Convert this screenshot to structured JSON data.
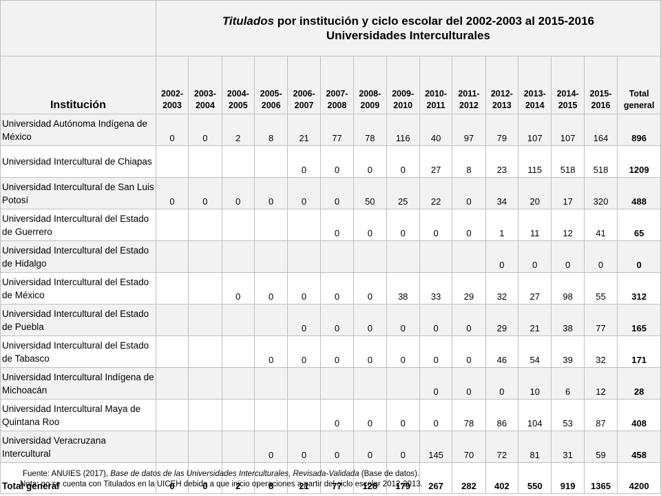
{
  "title": {
    "italic_part": "Titulados",
    "rest_line1": " por institución y ciclo escolar del 2002-2003 al  2015-2016",
    "line2": "Universidades Interculturales"
  },
  "header": {
    "institution_label": "Institución",
    "years": [
      "2002-2003",
      "2003-2004",
      "2004-2005",
      "2005-2006",
      "2006-2007",
      "2007-2008",
      "2008-2009",
      "2009-2010",
      "2010-2011",
      "2011-2012",
      "2012-2013",
      "2013-2014",
      "2014-2015",
      "2015-2016"
    ],
    "total_label": "Total general"
  },
  "rows": [
    {
      "name": "Universidad Autónoma Indígena de México",
      "values": [
        "0",
        "0",
        "2",
        "8",
        "21",
        "77",
        "78",
        "116",
        "40",
        "97",
        "79",
        "107",
        "107",
        "164"
      ],
      "total": "896"
    },
    {
      "name": "Universidad Intercultural de Chiapas",
      "values": [
        "",
        "",
        "",
        "",
        "0",
        "0",
        "0",
        "0",
        "27",
        "8",
        "23",
        "115",
        "518",
        "518"
      ],
      "total": "1209"
    },
    {
      "name": "Universidad Intercultural de San Luis Potosí",
      "values": [
        "0",
        "0",
        "0",
        "0",
        "0",
        "0",
        "50",
        "25",
        "22",
        "0",
        "34",
        "20",
        "17",
        "320"
      ],
      "total": "488"
    },
    {
      "name": "Universidad Intercultural del Estado de Guerrero",
      "values": [
        "",
        "",
        "",
        "",
        "",
        "0",
        "0",
        "0",
        "0",
        "0",
        "1",
        "11",
        "12",
        "41"
      ],
      "total": "65"
    },
    {
      "name": "Universidad Intercultural del Estado de Hidalgo",
      "values": [
        "",
        "",
        "",
        "",
        "",
        "",
        "",
        "",
        "",
        "",
        "0",
        "0",
        "0",
        "0"
      ],
      "total": "0"
    },
    {
      "name": "Universidad Intercultural del Estado de México",
      "values": [
        "",
        "",
        "0",
        "0",
        "0",
        "0",
        "0",
        "38",
        "33",
        "29",
        "32",
        "27",
        "98",
        "55"
      ],
      "total": "312"
    },
    {
      "name": "Universidad Intercultural del Estado de Puebla",
      "values": [
        "",
        "",
        "",
        "",
        "0",
        "0",
        "0",
        "0",
        "0",
        "0",
        "29",
        "21",
        "38",
        "77"
      ],
      "total": "165"
    },
    {
      "name": "Universidad Intercultural del Estado de Tabasco",
      "values": [
        "",
        "",
        "",
        "0",
        "0",
        "0",
        "0",
        "0",
        "0",
        "0",
        "46",
        "54",
        "39",
        "32"
      ],
      "total": "171"
    },
    {
      "name": "Universidad Intercultural Indígena de Michoacán",
      "values": [
        "",
        "",
        "",
        "",
        "",
        "",
        "",
        "",
        "0",
        "0",
        "0",
        "10",
        "6",
        "12"
      ],
      "total": "28"
    },
    {
      "name": "Universidad Intercultural Maya de Quintana Roo",
      "values": [
        "",
        "",
        "",
        "",
        "",
        "0",
        "0",
        "0",
        "0",
        "78",
        "86",
        "104",
        "53",
        "87"
      ],
      "total": "408"
    },
    {
      "name": "Universidad Veracruzana Intercultural",
      "values": [
        "",
        "",
        "",
        "0",
        "0",
        "0",
        "0",
        "0",
        "145",
        "70",
        "72",
        "81",
        "31",
        "59"
      ],
      "total": "458"
    }
  ],
  "total_row": {
    "label": "Total general",
    "values": [
      "0",
      "0",
      "2",
      "8",
      "21",
      "77",
      "128",
      "179",
      "267",
      "282",
      "402",
      "550",
      "919",
      "1365"
    ],
    "total": "4200"
  },
  "notes": {
    "source_prefix": "Fuente: ANUIES (2017),  ",
    "source_italic": "Base de datos de las Universidades  Interculturales, Revisada-Validada",
    "source_suffix": "  (Base de datos).",
    "note": "Nota: no se cuenta con Titulados en la UICEH  debido a que inicio operaciones  a partir del ciclo escolar 2012-2013."
  }
}
